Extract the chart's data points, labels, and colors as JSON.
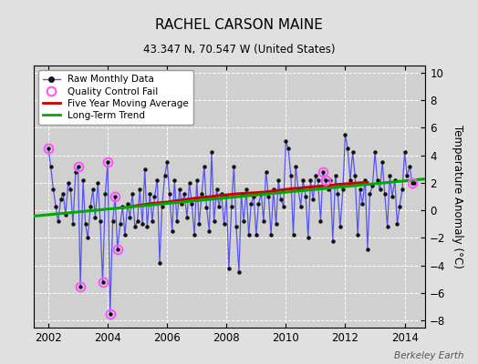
{
  "title": "RACHEL CARSON MAINE",
  "subtitle": "43.347 N, 70.547 W (United States)",
  "ylabel": "Temperature Anomaly (°C)",
  "watermark": "Berkeley Earth",
  "xlim": [
    2001.5,
    2014.7
  ],
  "ylim": [
    -8.5,
    10.5
  ],
  "yticks": [
    -8,
    -6,
    -4,
    -2,
    0,
    2,
    4,
    6,
    8,
    10
  ],
  "xticks": [
    2002,
    2004,
    2006,
    2008,
    2010,
    2012,
    2014
  ],
  "bg_color": "#e0e0e0",
  "plot_bg_color": "#d0d0d0",
  "raw_line_color": "#5555ee",
  "raw_marker_color": "#111111",
  "qc_color": "#ff55ff",
  "moving_avg_color": "#cc0000",
  "trend_color": "#00aa00",
  "raw_data": [
    [
      2002.0,
      4.5
    ],
    [
      2002.08,
      3.2
    ],
    [
      2002.17,
      1.5
    ],
    [
      2002.25,
      0.3
    ],
    [
      2002.33,
      -0.8
    ],
    [
      2002.42,
      0.8
    ],
    [
      2002.5,
      1.2
    ],
    [
      2002.58,
      -0.3
    ],
    [
      2002.67,
      2.0
    ],
    [
      2002.75,
      1.5
    ],
    [
      2002.83,
      -1.0
    ],
    [
      2002.92,
      2.8
    ],
    [
      2003.0,
      3.2
    ],
    [
      2003.08,
      -5.5
    ],
    [
      2003.17,
      2.2
    ],
    [
      2003.25,
      -1.0
    ],
    [
      2003.33,
      -2.0
    ],
    [
      2003.42,
      0.3
    ],
    [
      2003.5,
      1.5
    ],
    [
      2003.58,
      -0.5
    ],
    [
      2003.67,
      2.0
    ],
    [
      2003.75,
      -0.8
    ],
    [
      2003.83,
      -5.2
    ],
    [
      2003.92,
      1.2
    ],
    [
      2004.0,
      3.5
    ],
    [
      2004.08,
      -7.5
    ],
    [
      2004.17,
      -0.8
    ],
    [
      2004.25,
      1.0
    ],
    [
      2004.33,
      -2.8
    ],
    [
      2004.42,
      -1.0
    ],
    [
      2004.5,
      0.3
    ],
    [
      2004.58,
      -1.8
    ],
    [
      2004.67,
      0.5
    ],
    [
      2004.75,
      -0.5
    ],
    [
      2004.83,
      1.2
    ],
    [
      2004.92,
      -1.2
    ],
    [
      2005.0,
      -0.8
    ],
    [
      2005.08,
      1.5
    ],
    [
      2005.17,
      -1.0
    ],
    [
      2005.25,
      3.0
    ],
    [
      2005.33,
      -1.2
    ],
    [
      2005.42,
      1.2
    ],
    [
      2005.5,
      -0.8
    ],
    [
      2005.58,
      1.0
    ],
    [
      2005.67,
      2.2
    ],
    [
      2005.75,
      -3.8
    ],
    [
      2005.83,
      0.3
    ],
    [
      2005.92,
      2.5
    ],
    [
      2006.0,
      3.5
    ],
    [
      2006.08,
      1.2
    ],
    [
      2006.17,
      -1.5
    ],
    [
      2006.25,
      2.2
    ],
    [
      2006.33,
      -0.8
    ],
    [
      2006.42,
      1.5
    ],
    [
      2006.5,
      0.5
    ],
    [
      2006.58,
      1.2
    ],
    [
      2006.67,
      -0.5
    ],
    [
      2006.75,
      2.0
    ],
    [
      2006.83,
      0.5
    ],
    [
      2006.92,
      -1.8
    ],
    [
      2007.0,
      2.2
    ],
    [
      2007.08,
      -1.0
    ],
    [
      2007.17,
      1.2
    ],
    [
      2007.25,
      3.2
    ],
    [
      2007.33,
      0.2
    ],
    [
      2007.42,
      -1.5
    ],
    [
      2007.5,
      4.2
    ],
    [
      2007.58,
      -0.8
    ],
    [
      2007.67,
      1.5
    ],
    [
      2007.75,
      0.3
    ],
    [
      2007.83,
      1.2
    ],
    [
      2007.92,
      -1.0
    ],
    [
      2008.0,
      1.0
    ],
    [
      2008.08,
      -4.2
    ],
    [
      2008.17,
      0.3
    ],
    [
      2008.25,
      3.2
    ],
    [
      2008.33,
      -1.2
    ],
    [
      2008.42,
      -4.5
    ],
    [
      2008.5,
      1.2
    ],
    [
      2008.58,
      -0.8
    ],
    [
      2008.67,
      1.5
    ],
    [
      2008.75,
      -1.8
    ],
    [
      2008.83,
      0.5
    ],
    [
      2008.92,
      1.0
    ],
    [
      2009.0,
      -1.8
    ],
    [
      2009.08,
      0.5
    ],
    [
      2009.17,
      1.2
    ],
    [
      2009.25,
      -0.8
    ],
    [
      2009.33,
      2.8
    ],
    [
      2009.42,
      1.0
    ],
    [
      2009.5,
      -1.8
    ],
    [
      2009.58,
      1.5
    ],
    [
      2009.67,
      -1.0
    ],
    [
      2009.75,
      2.2
    ],
    [
      2009.83,
      0.8
    ],
    [
      2009.92,
      0.3
    ],
    [
      2010.0,
      5.0
    ],
    [
      2010.08,
      4.5
    ],
    [
      2010.17,
      2.5
    ],
    [
      2010.25,
      -1.8
    ],
    [
      2010.33,
      3.2
    ],
    [
      2010.42,
      1.5
    ],
    [
      2010.5,
      0.3
    ],
    [
      2010.58,
      2.2
    ],
    [
      2010.67,
      1.0
    ],
    [
      2010.75,
      -2.0
    ],
    [
      2010.83,
      2.2
    ],
    [
      2010.92,
      0.8
    ],
    [
      2011.0,
      2.5
    ],
    [
      2011.08,
      2.2
    ],
    [
      2011.17,
      -0.8
    ],
    [
      2011.25,
      2.8
    ],
    [
      2011.33,
      2.2
    ],
    [
      2011.42,
      1.5
    ],
    [
      2011.5,
      2.2
    ],
    [
      2011.58,
      -2.2
    ],
    [
      2011.67,
      2.5
    ],
    [
      2011.75,
      1.2
    ],
    [
      2011.83,
      -1.2
    ],
    [
      2011.92,
      1.5
    ],
    [
      2012.0,
      5.5
    ],
    [
      2012.08,
      4.5
    ],
    [
      2012.17,
      2.2
    ],
    [
      2012.25,
      4.2
    ],
    [
      2012.33,
      2.5
    ],
    [
      2012.42,
      -1.8
    ],
    [
      2012.5,
      1.5
    ],
    [
      2012.58,
      0.5
    ],
    [
      2012.67,
      2.2
    ],
    [
      2012.75,
      -2.8
    ],
    [
      2012.83,
      1.2
    ],
    [
      2012.92,
      1.8
    ],
    [
      2013.0,
      4.2
    ],
    [
      2013.08,
      2.2
    ],
    [
      2013.17,
      1.5
    ],
    [
      2013.25,
      3.5
    ],
    [
      2013.33,
      1.2
    ],
    [
      2013.42,
      -1.2
    ],
    [
      2013.5,
      2.5
    ],
    [
      2013.58,
      1.0
    ],
    [
      2013.67,
      2.2
    ],
    [
      2013.75,
      -1.0
    ],
    [
      2013.83,
      0.3
    ],
    [
      2013.92,
      1.5
    ],
    [
      2014.0,
      4.2
    ],
    [
      2014.08,
      2.5
    ],
    [
      2014.17,
      3.2
    ],
    [
      2014.25,
      2.0
    ],
    [
      2014.33,
      2.0
    ]
  ],
  "qc_fail": [
    [
      2002.0,
      4.5
    ],
    [
      2003.0,
      3.2
    ],
    [
      2003.08,
      -5.5
    ],
    [
      2003.83,
      -5.2
    ],
    [
      2004.0,
      3.5
    ],
    [
      2004.08,
      -7.5
    ],
    [
      2004.25,
      1.0
    ],
    [
      2004.33,
      -2.8
    ],
    [
      2011.25,
      2.8
    ],
    [
      2011.33,
      2.2
    ],
    [
      2014.25,
      2.0
    ]
  ],
  "moving_avg": [
    [
      2004.75,
      0.25
    ],
    [
      2005.0,
      0.35
    ],
    [
      2005.25,
      0.42
    ],
    [
      2005.5,
      0.5
    ],
    [
      2005.75,
      0.55
    ],
    [
      2006.0,
      0.6
    ],
    [
      2006.25,
      0.68
    ],
    [
      2006.5,
      0.75
    ],
    [
      2006.75,
      0.82
    ],
    [
      2007.0,
      0.9
    ],
    [
      2007.25,
      0.95
    ],
    [
      2007.5,
      1.0
    ],
    [
      2007.75,
      1.08
    ],
    [
      2008.0,
      1.12
    ],
    [
      2008.25,
      1.18
    ],
    [
      2008.5,
      1.22
    ],
    [
      2008.75,
      1.25
    ],
    [
      2009.0,
      1.28
    ],
    [
      2009.25,
      1.32
    ],
    [
      2009.5,
      1.38
    ],
    [
      2009.75,
      1.45
    ],
    [
      2010.0,
      1.52
    ],
    [
      2010.25,
      1.58
    ],
    [
      2010.5,
      1.62
    ],
    [
      2010.75,
      1.68
    ],
    [
      2011.0,
      1.72
    ],
    [
      2011.25,
      1.78
    ],
    [
      2011.5,
      1.82
    ],
    [
      2011.75,
      1.88
    ],
    [
      2012.0,
      1.92
    ],
    [
      2012.25,
      1.96
    ],
    [
      2012.5,
      2.0
    ],
    [
      2012.75,
      2.02
    ]
  ],
  "trend_x": [
    2001.5,
    2014.7
  ],
  "trend_y": [
    -0.42,
    2.28
  ]
}
